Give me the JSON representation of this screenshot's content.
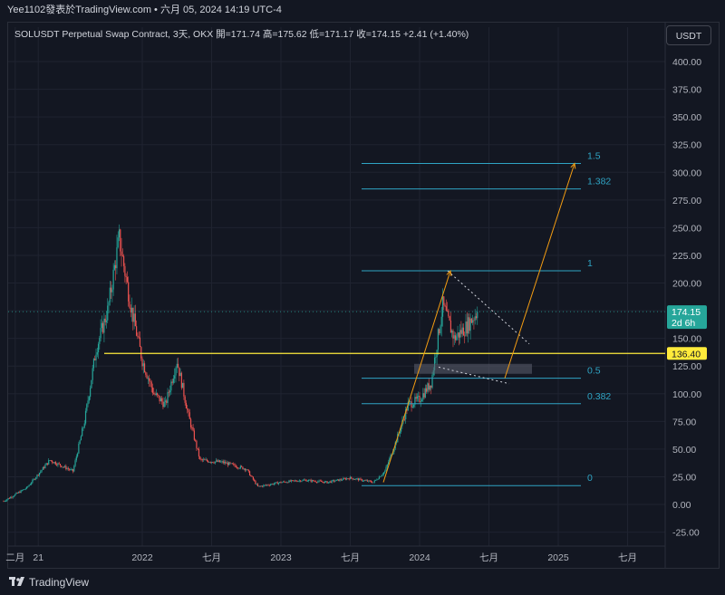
{
  "header": {
    "text": "Yee1102發表於TradingView.com • 六月 05, 2024 14:19 UTC-4"
  },
  "legend": {
    "symbol": "SOLUSDT Perpetual Swap Contract, 3天, OKX",
    "open_label": "開=",
    "open": "171.74",
    "high_label": "高=",
    "high": "175.62",
    "low_label": "低=",
    "low": "171.17",
    "close_label": "收=",
    "close": "174.15",
    "change": "+2.41 (+1.40%)"
  },
  "currency_button": "USDT",
  "price_label": {
    "value": "174.15",
    "countdown": "2d 6h",
    "color": "#26a69a"
  },
  "hline_label": {
    "value": "136.40",
    "color": "#ffeb3b"
  },
  "footer": {
    "brand": "TradingView"
  },
  "colors": {
    "up": "#26a69a",
    "down": "#ef5350",
    "fib": "#2fa4c4",
    "hline": "#ffeb3b",
    "arrow": "#f39c12",
    "grid": "#1f2330"
  },
  "chart_data": {
    "type": "candlestick",
    "yticks": [
      "400.00",
      "375.00",
      "350.00",
      "325.00",
      "300.00",
      "275.00",
      "250.00",
      "225.00",
      "200.00",
      "175.00",
      "150.00",
      "125.00",
      "100.00",
      "75.00",
      "50.00",
      "25.00",
      "0.00",
      "-25.00"
    ],
    "ylim": [
      -35,
      415
    ],
    "xticks": [
      {
        "label": "二月",
        "date": "2021-02"
      },
      {
        "label": "21",
        "date": "2021-04"
      },
      {
        "label": "2022",
        "date": "2022-01"
      },
      {
        "label": "七月",
        "date": "2022-07"
      },
      {
        "label": "2023",
        "date": "2023-01"
      },
      {
        "label": "七月",
        "date": "2023-07"
      },
      {
        "label": "2024",
        "date": "2024-01"
      },
      {
        "label": "七月",
        "date": "2024-07"
      },
      {
        "label": "2025",
        "date": "2025-01"
      },
      {
        "label": "七月",
        "date": "2025-07"
      }
    ],
    "price_path": [
      [
        "2021-01",
        3
      ],
      [
        "2021-03",
        15
      ],
      [
        "2021-05",
        40
      ],
      [
        "2021-07",
        30
      ],
      [
        "2021-08",
        75
      ],
      [
        "2021-09",
        140
      ],
      [
        "2021-10",
        175
      ],
      [
        "2021-11",
        240
      ],
      [
        "2021-12",
        180
      ],
      [
        "2022-01",
        130
      ],
      [
        "2022-02",
        100
      ],
      [
        "2022-03",
        90
      ],
      [
        "2022-04",
        130
      ],
      [
        "2022-05",
        80
      ],
      [
        "2022-06",
        40
      ],
      [
        "2022-08",
        38
      ],
      [
        "2022-10",
        32
      ],
      [
        "2022-11",
        16
      ],
      [
        "2023-01",
        20
      ],
      [
        "2023-03",
        22
      ],
      [
        "2023-05",
        20
      ],
      [
        "2023-07",
        24
      ],
      [
        "2023-09",
        20
      ],
      [
        "2023-10",
        30
      ],
      [
        "2023-11",
        58
      ],
      [
        "2023-12",
        90
      ],
      [
        "2024-01",
        95
      ],
      [
        "2024-02",
        110
      ],
      [
        "2024-03",
        180
      ],
      [
        "2024-04",
        150
      ],
      [
        "2024-05",
        160
      ],
      [
        "2024-06",
        174
      ]
    ],
    "fib_levels": [
      {
        "label": "0",
        "value": 17
      },
      {
        "label": "0.382",
        "value": 91
      },
      {
        "label": "0.5",
        "value": 114
      },
      {
        "label": "1",
        "value": 211
      },
      {
        "label": "1.382",
        "value": 285
      },
      {
        "label": "1.5",
        "value": 308
      }
    ],
    "horizontal_line": 136.4,
    "last_price": 174.15
  }
}
